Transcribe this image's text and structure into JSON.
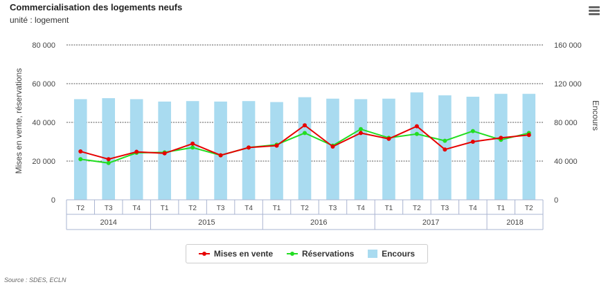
{
  "title": "Commercialisation des logements neufs",
  "subtitle": "unité : logement",
  "source": "Source : SDES, ECLN",
  "legend": {
    "mises": "Mises en vente",
    "reservations": "Réservations",
    "encours": "Encours"
  },
  "colors": {
    "mises": "#e60000",
    "reservations": "#22dd22",
    "encours": "#a9dbf0"
  },
  "chart_data": {
    "type": "bar",
    "title": "Commercialisation des logements neufs",
    "subtitle": "unité : logement",
    "ylabel_left": "Mises en vente, réservations",
    "ylabel_right": "Encours",
    "ylim_left": [
      0,
      80000
    ],
    "ylim_right": [
      0,
      160000
    ],
    "yticks_left": [
      "0",
      "20 000",
      "40 000",
      "60 000",
      "80 000"
    ],
    "yticks_right": [
      "0",
      "40 000",
      "80 000",
      "120 000",
      "160 000"
    ],
    "grid": true,
    "legend_position": "bottom-center",
    "categories": [
      "T2",
      "T3",
      "T4",
      "T1",
      "T2",
      "T3",
      "T4",
      "T1",
      "T2",
      "T3",
      "T4",
      "T1",
      "T2",
      "T3",
      "T4",
      "T1",
      "T2"
    ],
    "years": [
      {
        "label": "2014",
        "span": 3
      },
      {
        "label": "2015",
        "span": 4
      },
      {
        "label": "2016",
        "span": 4
      },
      {
        "label": "2017",
        "span": 4
      },
      {
        "label": "2018",
        "span": 2
      }
    ],
    "series": [
      {
        "name": "Encours",
        "type": "column",
        "axis": "right",
        "values": [
          104000,
          105000,
          104000,
          101500,
          102000,
          101500,
          102000,
          101000,
          106000,
          104500,
          104000,
          104500,
          111000,
          108000,
          106500,
          109500,
          109500
        ]
      },
      {
        "name": "Mises en vente",
        "type": "line",
        "axis": "left",
        "values": [
          25000,
          21000,
          24800,
          24000,
          29000,
          23000,
          27000,
          28000,
          38500,
          27500,
          34500,
          31500,
          38000,
          26000,
          30000,
          32000,
          33500
        ]
      },
      {
        "name": "Réservations",
        "type": "line",
        "axis": "left",
        "values": [
          21000,
          19000,
          24300,
          24500,
          27000,
          23000,
          27000,
          28500,
          34500,
          28000,
          36500,
          32000,
          34000,
          30500,
          35500,
          31000,
          34500
        ]
      }
    ]
  }
}
